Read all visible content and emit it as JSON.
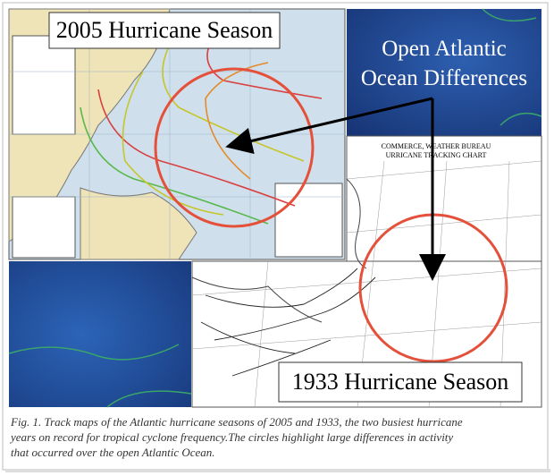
{
  "figure": {
    "label_2005": "2005 Hurricane Season",
    "callout": [
      "Open Atlantic",
      "Ocean Differences"
    ],
    "label_1933": "1933 Hurricane Season",
    "chart_1933_header": [
      "COMMERCE, WEATHER BUREAU",
      "URRICANE TRACKING CHART"
    ],
    "caption": [
      "Fig. 1. Track maps of the Atlantic hurricane seasons of 2005 and 1933, the two busiest hurricane",
      "years on record for tropical cyclone frequency.The circles highlight large differences in activity",
      "that occurred over the open Atlantic Ocean."
    ]
  }
}
